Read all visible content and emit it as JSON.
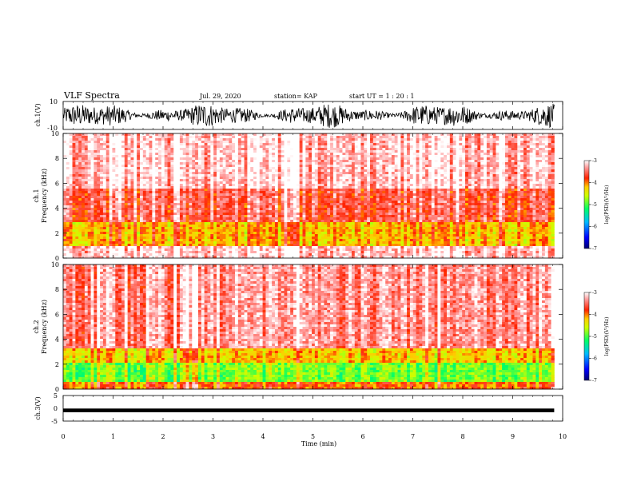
{
  "header": {
    "title": "VLF Spectra",
    "date": "Jul. 29, 2020",
    "station": "station= KAP",
    "start": "start UT = 1 : 20 : 1"
  },
  "chart_data": [
    {
      "type": "line",
      "name": "ch1-waveform",
      "ylabel": "ch.1(V)",
      "ylim": [
        -10,
        10
      ],
      "yticks": [
        "10",
        "-10"
      ],
      "xlim": [
        0,
        10
      ],
      "x_extent": [
        0,
        9.83
      ],
      "amplitude_range": [
        -9,
        9
      ]
    },
    {
      "type": "heatmap",
      "name": "ch1-spectrogram",
      "ylabel_line1": "ch.1",
      "ylabel_line2": "Frequency (kHz)",
      "ylim": [
        0,
        10
      ],
      "yticks": [
        "0",
        "2",
        "4",
        "6",
        "8",
        "10"
      ],
      "xlim": [
        0,
        10
      ],
      "x_extent": [
        0,
        9.83
      ],
      "colorbar": {
        "label": "log(PSD)(V²/Hz)",
        "range": [
          -7,
          -3
        ],
        "ticks": [
          "-3",
          "-4",
          "-5",
          "-6",
          "-7"
        ]
      },
      "bands_khz": [
        {
          "from": 0,
          "to": 1.0,
          "level": -3.2
        },
        {
          "from": 1.0,
          "to": 2.8,
          "level": -4.2
        },
        {
          "from": 2.8,
          "to": 5.5,
          "level": -3.6
        },
        {
          "from": 5.5,
          "to": 10,
          "level": -3.2
        }
      ]
    },
    {
      "type": "heatmap",
      "name": "ch2-spectrogram",
      "ylabel_line1": "ch.2",
      "ylabel_line2": "Frequency (kHz)",
      "ylim": [
        0,
        10
      ],
      "yticks": [
        "0",
        "2",
        "4",
        "6",
        "8",
        "10"
      ],
      "xlim": [
        0,
        10
      ],
      "x_extent": [
        0,
        9.83
      ],
      "colorbar": {
        "label": "log(PSD)(V²/Hz)",
        "range": [
          -7,
          -3
        ],
        "ticks": [
          "-3",
          "-4",
          "-5",
          "-6",
          "-7"
        ]
      },
      "bands_khz": [
        {
          "from": 0,
          "to": 0.6,
          "level": -4.0
        },
        {
          "from": 0.6,
          "to": 2.2,
          "level": -4.9
        },
        {
          "from": 2.2,
          "to": 3.2,
          "level": -4.3
        },
        {
          "from": 3.2,
          "to": 10,
          "level": -3.4
        }
      ]
    },
    {
      "type": "line",
      "name": "ch3-waveform",
      "ylabel": "ch.3(V)",
      "ylim": [
        -5,
        5
      ],
      "yticks": [
        "5",
        "0",
        "-5"
      ],
      "xlim": [
        0,
        10
      ],
      "x_extent": [
        0,
        9.83
      ],
      "amplitude_range": [
        -0.6,
        -0.1
      ],
      "xlabel": "Time (min)",
      "xticks": [
        "0",
        "1",
        "2",
        "3",
        "4",
        "5",
        "6",
        "7",
        "8",
        "9",
        "10"
      ]
    }
  ]
}
